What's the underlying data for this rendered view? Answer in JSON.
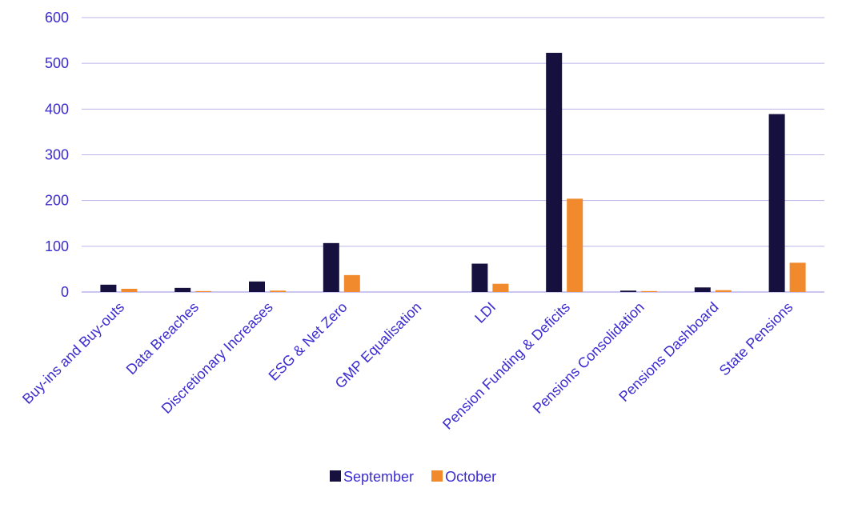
{
  "chart_data": {
    "type": "bar",
    "categories": [
      "Buy-ins and Buy-outs",
      "Data Breaches",
      "Discretionary Increases",
      "ESG & Net Zero",
      "GMP Equalisation",
      "LDI",
      "Pension Funding & Deficits",
      "Pensions Consolidation",
      "Pensions Dashboard",
      "State Pensions"
    ],
    "series": [
      {
        "name": "September",
        "color": "#16103f",
        "values": [
          16,
          9,
          23,
          107,
          0,
          62,
          523,
          3,
          10,
          389
        ]
      },
      {
        "name": "October",
        "color": "#f08a2d",
        "values": [
          7,
          2,
          3,
          37,
          0,
          18,
          204,
          2,
          4,
          64
        ]
      }
    ],
    "yticks": [
      0,
      100,
      200,
      300,
      400,
      500,
      600
    ],
    "ylim": [
      0,
      600
    ],
    "grid": true,
    "legend": "bottom-center",
    "text_color": "#3b2bd0",
    "grid_color": "#b9b3ea"
  }
}
